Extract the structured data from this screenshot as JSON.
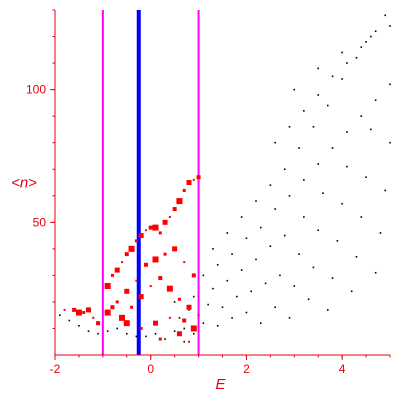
{
  "chart_data": {
    "type": "scatter",
    "title": "",
    "xlabel": "E",
    "ylabel": "<n>",
    "xlim": [
      -2,
      5
    ],
    "ylim": [
      0,
      130
    ],
    "x_ticks": [
      -2,
      0,
      2,
      4
    ],
    "y_ticks": [
      50,
      100
    ],
    "x_tick_labels": [
      "-2",
      "0",
      "2",
      "4"
    ],
    "y_tick_labels": [
      "50",
      "100"
    ],
    "grid": false,
    "colors": {
      "axes": "#e8000b",
      "black_points": "#000000",
      "red_points": "#ff0000",
      "magenta_line": "#ff00ff",
      "blue_line": "#0000ff"
    },
    "vertical_lines": [
      {
        "x": -1.0,
        "color": "#ff00ff"
      },
      {
        "x": -0.25,
        "color": "#0000ff"
      },
      {
        "x": 1.0,
        "color": "#ff00ff"
      }
    ],
    "series": [
      {
        "color": "#000000",
        "points": [
          [
            0.5,
            20
          ],
          [
            0.6,
            14
          ],
          [
            0.7,
            10
          ],
          [
            0.8,
            17
          ],
          [
            0.9,
            22
          ],
          [
            1.0,
            15
          ],
          [
            1.1,
            12
          ],
          [
            1.2,
            19
          ],
          [
            1.3,
            25
          ],
          [
            1.4,
            11
          ],
          [
            1.5,
            18
          ],
          [
            1.6,
            28
          ],
          [
            1.7,
            14
          ],
          [
            1.8,
            22
          ],
          [
            1.9,
            32
          ],
          [
            2.0,
            16
          ],
          [
            2.1,
            24
          ],
          [
            2.2,
            36
          ],
          [
            2.3,
            12
          ],
          [
            2.4,
            27
          ],
          [
            2.5,
            41
          ],
          [
            2.6,
            18
          ],
          [
            2.7,
            30
          ],
          [
            2.8,
            45
          ],
          [
            2.9,
            14
          ],
          [
            3.0,
            26
          ],
          [
            3.1,
            38
          ],
          [
            3.2,
            52
          ],
          [
            3.3,
            21
          ],
          [
            3.4,
            33
          ],
          [
            3.5,
            47
          ],
          [
            3.6,
            61
          ],
          [
            3.7,
            17
          ],
          [
            3.8,
            29
          ],
          [
            3.9,
            43
          ],
          [
            4.0,
            57
          ],
          [
            4.1,
            71
          ],
          [
            4.2,
            24
          ],
          [
            4.3,
            37
          ],
          [
            4.4,
            52
          ],
          [
            4.5,
            67
          ],
          [
            4.6,
            85
          ],
          [
            4.7,
            31
          ],
          [
            4.8,
            46
          ],
          [
            4.9,
            62
          ],
          [
            5.0,
            80
          ],
          [
            1.3,
            40
          ],
          [
            1.6,
            46
          ],
          [
            1.9,
            52
          ],
          [
            2.2,
            58
          ],
          [
            2.5,
            64
          ],
          [
            2.8,
            70
          ],
          [
            3.1,
            78
          ],
          [
            3.4,
            86
          ],
          [
            3.7,
            94
          ],
          [
            4.0,
            104
          ],
          [
            4.3,
            112
          ],
          [
            4.6,
            120
          ],
          [
            4.9,
            128
          ],
          [
            2.6,
            80
          ],
          [
            2.9,
            86
          ],
          [
            3.2,
            92
          ],
          [
            3.5,
            98
          ],
          [
            3.8,
            105
          ],
          [
            4.1,
            110
          ],
          [
            4.4,
            116
          ],
          [
            4.7,
            122
          ],
          [
            3.0,
            100
          ],
          [
            3.5,
            108
          ],
          [
            4.0,
            114
          ],
          [
            4.5,
            118
          ],
          [
            5.0,
            124
          ],
          [
            -1.9,
            15
          ],
          [
            -1.7,
            13
          ],
          [
            -1.5,
            11
          ],
          [
            -1.3,
            9
          ],
          [
            -1.1,
            8
          ],
          [
            -0.9,
            9
          ],
          [
            -0.7,
            10
          ],
          [
            -0.5,
            8
          ],
          [
            -0.3,
            7
          ],
          [
            -0.1,
            7
          ],
          [
            0.1,
            8
          ],
          [
            0.3,
            6
          ],
          [
            0.5,
            9
          ],
          [
            0.7,
            5
          ],
          [
            0.9,
            8
          ],
          [
            1.1,
            30
          ],
          [
            1.4,
            34
          ],
          [
            1.7,
            38
          ],
          [
            2.0,
            44
          ],
          [
            2.3,
            48
          ],
          [
            2.6,
            55
          ],
          [
            2.9,
            60
          ],
          [
            3.2,
            66
          ],
          [
            3.5,
            72
          ],
          [
            3.8,
            78
          ],
          [
            4.1,
            84
          ],
          [
            4.4,
            90
          ],
          [
            4.7,
            96
          ],
          [
            5.0,
            102
          ]
        ]
      },
      {
        "color": "#ff0000",
        "points": [
          [
            -1.8,
            17
          ],
          [
            -1.6,
            17
          ],
          [
            -1.5,
            16
          ],
          [
            -1.4,
            16
          ],
          [
            -1.3,
            17
          ],
          [
            -1.2,
            14
          ],
          [
            -1.1,
            12
          ],
          [
            -0.9,
            26
          ],
          [
            -0.8,
            30
          ],
          [
            -0.7,
            32
          ],
          [
            -0.6,
            35
          ],
          [
            -0.5,
            38
          ],
          [
            -0.4,
            40
          ],
          [
            -0.3,
            43
          ],
          [
            -0.2,
            45
          ],
          [
            -0.1,
            47
          ],
          [
            0.0,
            48
          ],
          [
            0.1,
            48
          ],
          [
            0.2,
            46
          ],
          [
            0.3,
            50
          ],
          [
            0.4,
            52
          ],
          [
            0.5,
            55
          ],
          [
            0.6,
            58
          ],
          [
            0.7,
            62
          ],
          [
            0.8,
            65
          ],
          [
            0.9,
            66
          ],
          [
            1.0,
            67
          ],
          [
            -0.9,
            16
          ],
          [
            -0.7,
            20
          ],
          [
            -0.5,
            24
          ],
          [
            -0.3,
            28
          ],
          [
            -0.1,
            34
          ],
          [
            0.1,
            36
          ],
          [
            0.3,
            38
          ],
          [
            0.5,
            40
          ],
          [
            0.7,
            35
          ],
          [
            0.9,
            30
          ],
          [
            -0.6,
            14
          ],
          [
            -0.4,
            18
          ],
          [
            -0.2,
            22
          ],
          [
            0.0,
            26
          ],
          [
            0.2,
            29
          ],
          [
            0.4,
            25
          ],
          [
            0.6,
            21
          ],
          [
            0.8,
            18
          ],
          [
            1.0,
            15
          ],
          [
            -0.8,
            18
          ],
          [
            -0.5,
            12
          ],
          [
            -0.2,
            10
          ],
          [
            0.1,
            12
          ],
          [
            0.4,
            14
          ],
          [
            0.7,
            13
          ],
          [
            0.9,
            10
          ],
          [
            0.2,
            6
          ],
          [
            0.6,
            8
          ],
          [
            0.8,
            5
          ]
        ]
      }
    ]
  }
}
